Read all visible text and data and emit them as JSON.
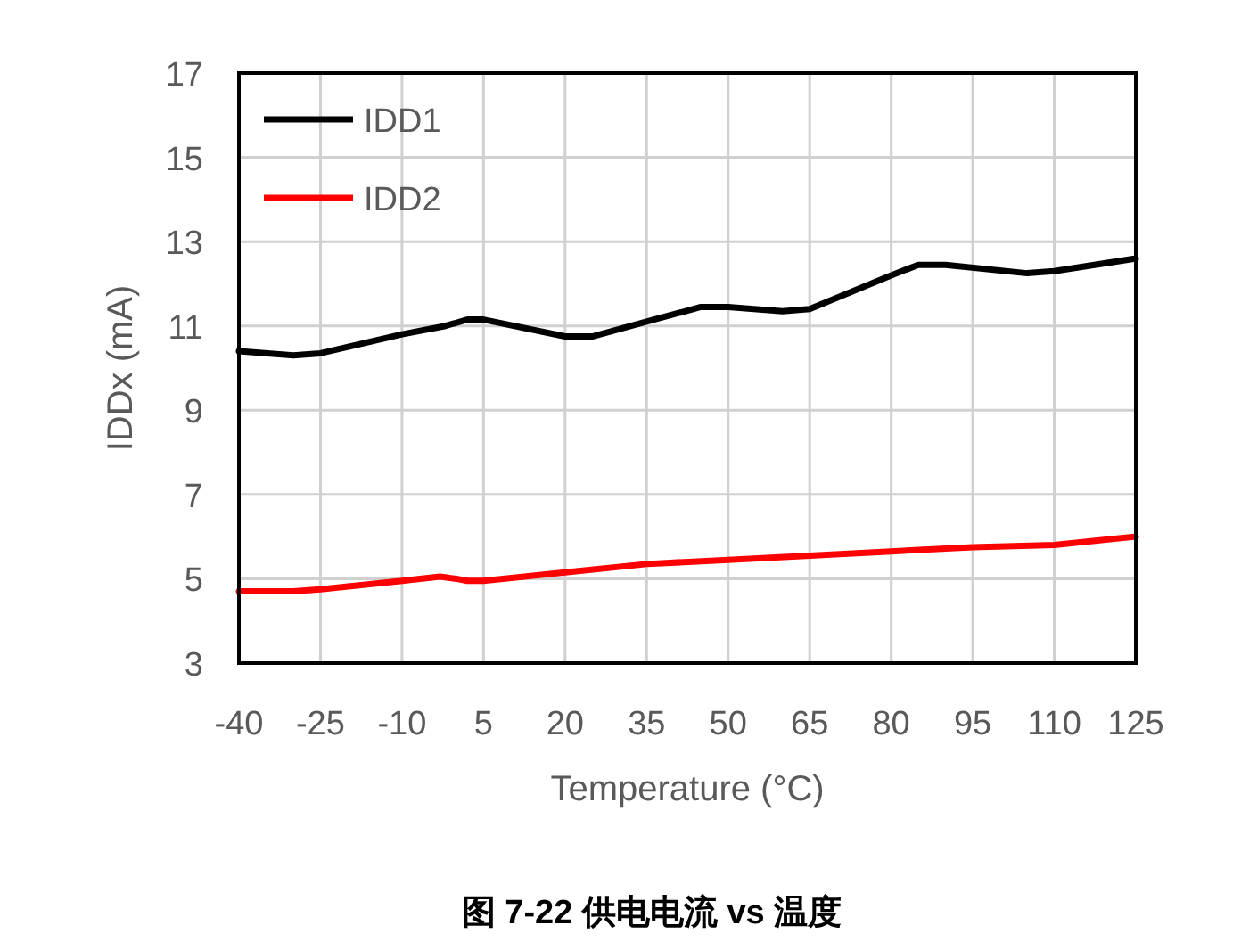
{
  "chart_data": {
    "type": "line",
    "title": "图 7-22 供电电流 vs 温度",
    "xlabel": "Temperature (°C)",
    "ylabel": "IDDx (mA)",
    "xlim": [
      -40,
      125
    ],
    "xticks": [
      -40,
      -25,
      -10,
      5,
      20,
      35,
      50,
      65,
      80,
      95,
      110,
      125
    ],
    "ylim": [
      3,
      17
    ],
    "yticks": [
      3,
      5,
      7,
      9,
      11,
      13,
      15,
      17
    ],
    "grid": true,
    "legend": "top left",
    "line_style": "solid",
    "marker": "none",
    "series": [
      {
        "name": "IDD1",
        "color": "#000000",
        "x": [
          -40,
          -30,
          -25,
          -10,
          -2,
          2,
          5,
          20,
          25,
          35,
          45,
          50,
          60,
          65,
          80,
          85,
          90,
          105,
          110,
          125
        ],
        "values": [
          10.4,
          10.3,
          10.35,
          10.8,
          11.0,
          11.15,
          11.15,
          10.75,
          10.75,
          11.1,
          11.45,
          11.45,
          11.35,
          11.4,
          12.2,
          12.45,
          12.45,
          12.25,
          12.3,
          12.6
        ]
      },
      {
        "name": "IDD2",
        "color": "#ff0000",
        "x": [
          -40,
          -30,
          -25,
          -10,
          -3,
          0,
          2,
          5,
          20,
          35,
          50,
          65,
          80,
          95,
          110,
          125
        ],
        "values": [
          4.7,
          4.7,
          4.75,
          4.95,
          5.05,
          5.0,
          4.95,
          4.95,
          5.15,
          5.35,
          5.45,
          5.55,
          5.65,
          5.75,
          5.8,
          6.0
        ]
      }
    ]
  }
}
